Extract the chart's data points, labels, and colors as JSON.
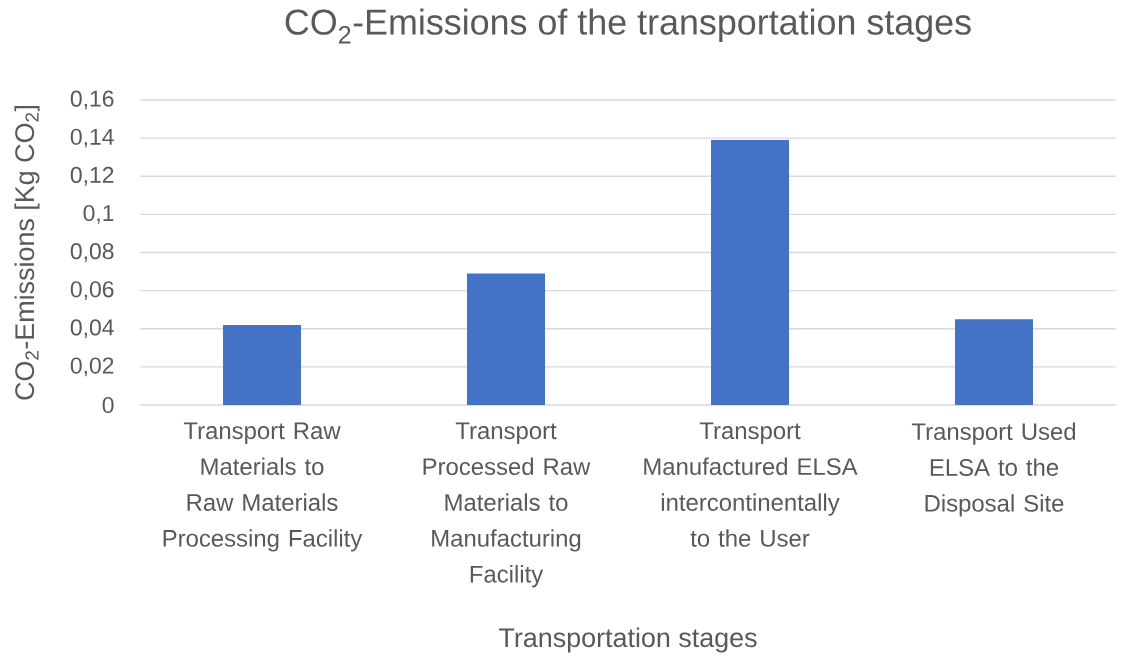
{
  "chart_data": {
    "type": "bar",
    "title": "CO$_{2}$-Emissions of the transportation stages",
    "xlabel": "Transportation stages",
    "ylabel": "CO$_{2}$-Emissions [Kg CO$_{2}$]",
    "categories": [
      "Transport Raw Materials to Raw Materials Processing Facility",
      "Transport Processed Raw Materials to Manufacturing Facility",
      "Transport Manufactured ELSA intercontinentally to the User",
      "Transport Used ELSA to the Disposal Site"
    ],
    "values": [
      0.042,
      0.069,
      0.139,
      0.045
    ],
    "color": "#4472c4",
    "ylim": [
      0,
      0.16
    ],
    "yticks": [
      0,
      {
        "value": 0.02,
        "label": "0,02"
      },
      {
        "value": 0.04,
        "label": "0,04"
      },
      {
        "value": 0.06,
        "label": "0,06"
      },
      {
        "value": 0.08,
        "label": "0,08"
      },
      {
        "value": 0.1,
        "label": "0,1"
      },
      {
        "value": 0.12,
        "label": "0,12"
      },
      {
        "value": 0.14,
        "label": "0,14"
      },
      {
        "value": 0.16,
        "label": "0,16"
      }
    ],
    "grid": "y"
  }
}
